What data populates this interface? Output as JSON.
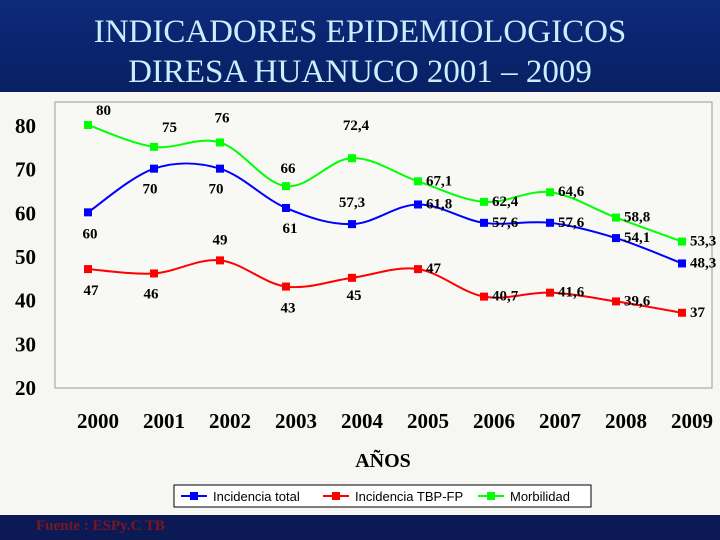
{
  "title_line1": "INDICADORES EPIDEMIOLOGICOS",
  "title_line2": "DIRESA HUANUCO 2001 – 2009",
  "footer": "Fuente : ESPy.C TB",
  "chart_data": {
    "type": "line",
    "title": "",
    "xlabel": "AÑOS",
    "ylabel": "",
    "categories": [
      "2000",
      "2001",
      "2002",
      "2003",
      "2004",
      "2005",
      "2006",
      "2007",
      "2008",
      "2009"
    ],
    "ylim": [
      20,
      80
    ],
    "yticks": [
      "20",
      "30",
      "40",
      "50",
      "60",
      "70",
      "80"
    ],
    "grid": false,
    "legend_position": "bottom",
    "series": [
      {
        "name": "Incidencia total",
        "color": "#0000ff",
        "values": [
          60,
          70,
          70,
          61,
          57.3,
          61.8,
          57.6,
          57.6,
          54.1,
          48.3
        ],
        "labels": [
          "60",
          "70",
          "70",
          "61",
          "57,3",
          "61,8",
          "57,6",
          "57,6",
          "54,1",
          "48,3"
        ]
      },
      {
        "name": "Incidencia TBP-FP",
        "color": "#ff0000",
        "values": [
          47,
          46,
          49,
          43,
          45,
          47,
          40.7,
          41.6,
          39.6,
          37
        ],
        "labels": [
          "47",
          "46",
          "49",
          "43",
          "45",
          "47",
          "40,7",
          "41,6",
          "39,6",
          "37"
        ]
      },
      {
        "name": "Morbilidad",
        "color": "#00ff00",
        "values": [
          80,
          75,
          76,
          66,
          72.4,
          67.1,
          62.4,
          64.6,
          58.8,
          53.3
        ],
        "labels": [
          "80",
          "75",
          "76",
          "66",
          "72,4",
          "67,1",
          "62,4",
          "64,6",
          "58,8",
          "53,3"
        ]
      }
    ]
  }
}
